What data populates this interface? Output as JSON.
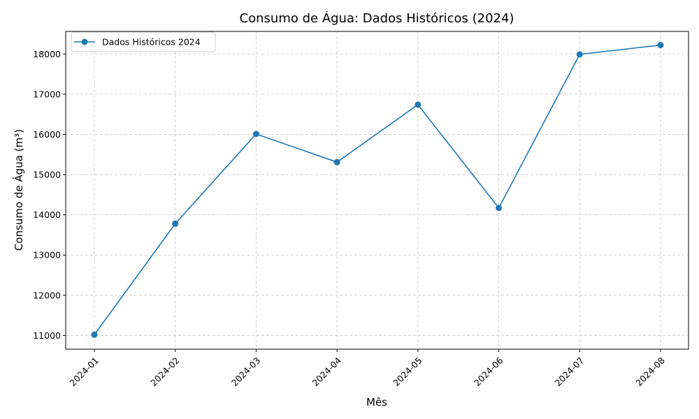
{
  "chart_data": {
    "type": "line",
    "title": "Consumo de Água: Dados Históricos (2024)",
    "xlabel": "Mês",
    "ylabel": "Consumo de Água (m³)",
    "x": [
      "2024-01",
      "2024-02",
      "2024-03",
      "2024-04",
      "2024-05",
      "2024-06",
      "2024-07",
      "2024-08"
    ],
    "series": [
      {
        "name": "Dados Históricos 2024",
        "color": "#1f77b4",
        "marker": "circle",
        "values": [
          11020,
          13780,
          16010,
          15310,
          16740,
          14170,
          17990,
          18220
        ]
      }
    ],
    "yticks": [
      11000,
      12000,
      13000,
      14000,
      15000,
      16000,
      17000,
      18000
    ],
    "ylim": [
      10660,
      18560
    ],
    "grid": true,
    "legend_position": "top-left"
  }
}
